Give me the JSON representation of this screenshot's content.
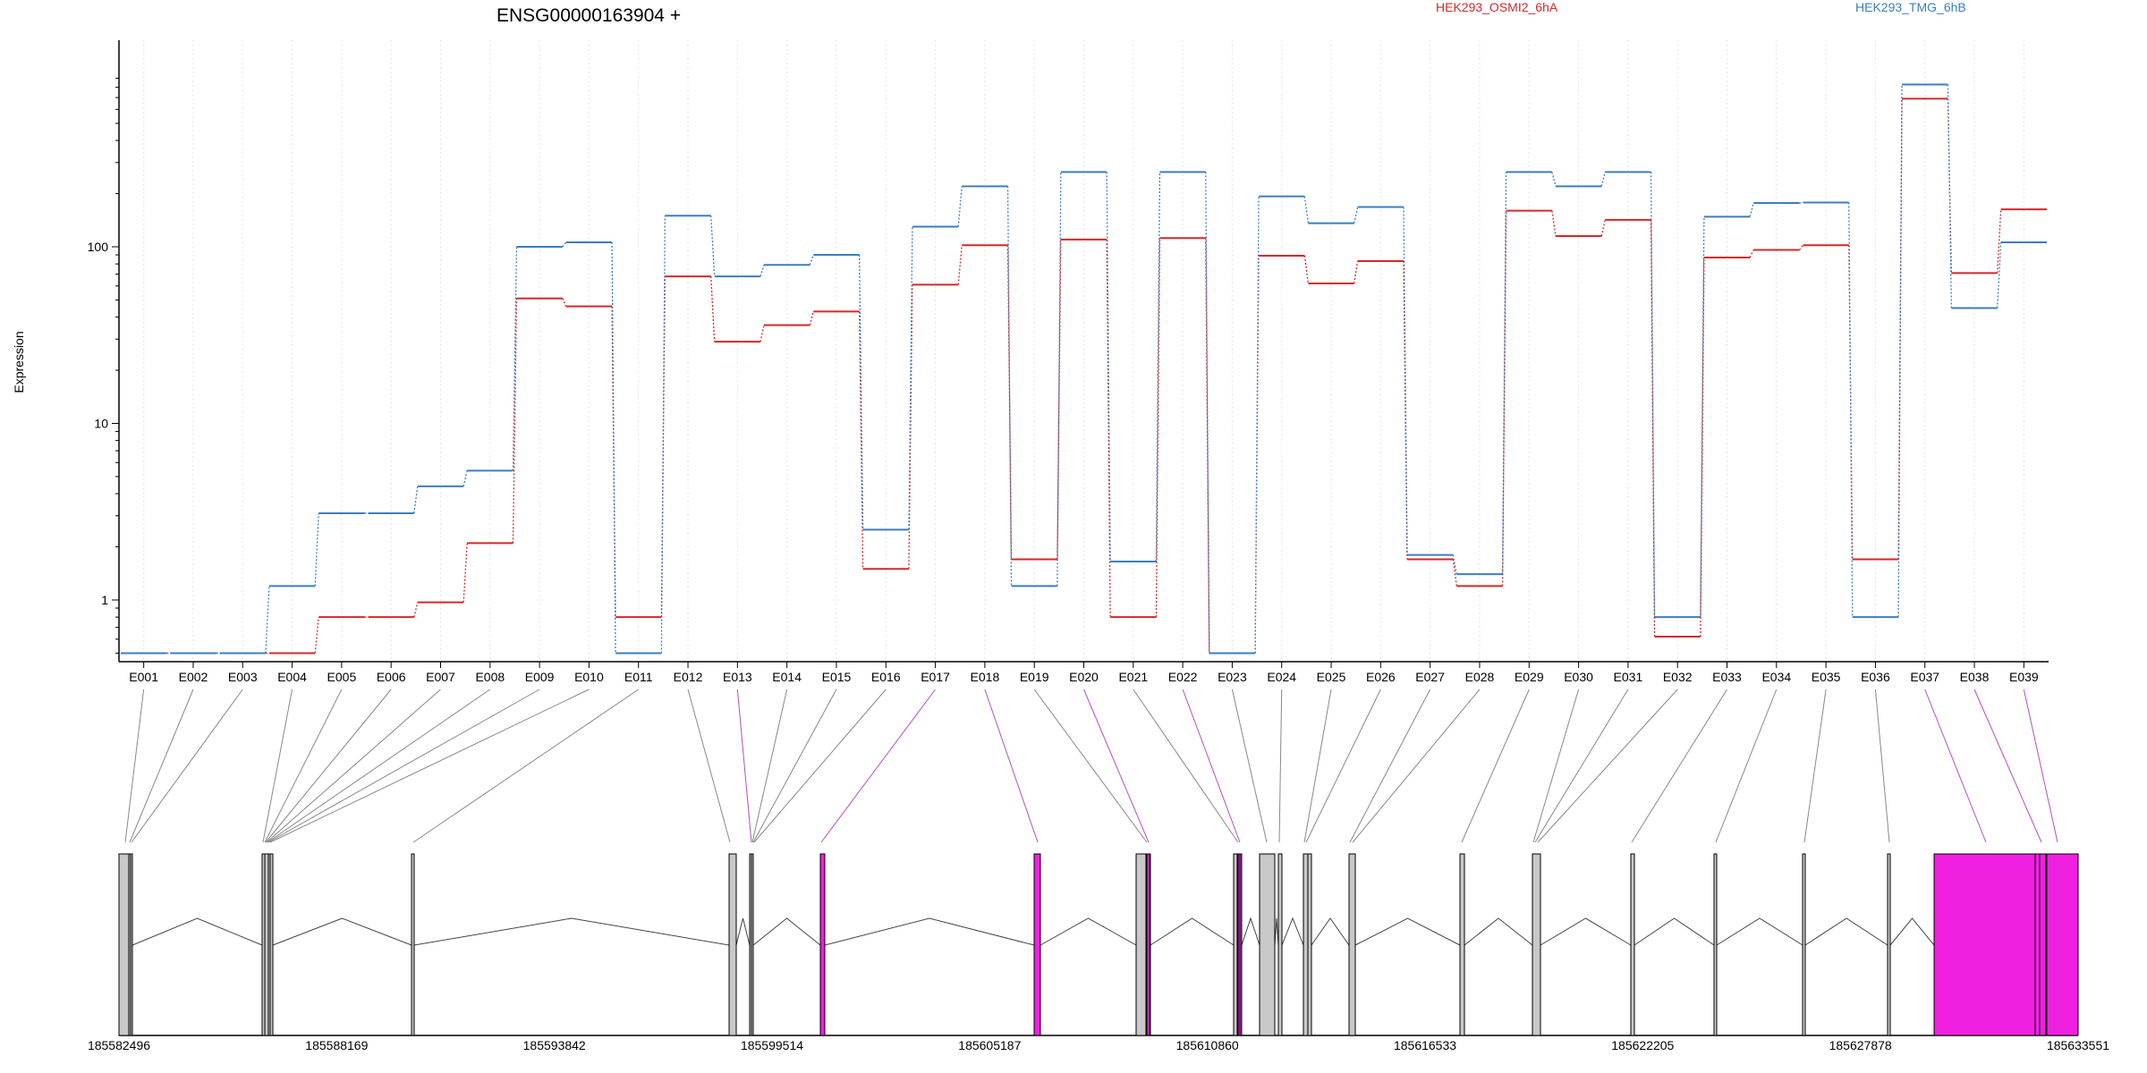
{
  "chart_data": {
    "type": "line",
    "title": "ENSG00000163904 +",
    "ylabel": "Expression",
    "yscale": "log",
    "ylim": [
      0.5,
      1000
    ],
    "ytick_labels": [
      "1",
      "10",
      "100"
    ],
    "ytick_values": [
      1,
      10,
      100
    ],
    "legend_placement": "top",
    "grid": "vertical dotted",
    "categories": [
      "E001",
      "E002",
      "E003",
      "E004",
      "E005",
      "E006",
      "E007",
      "E008",
      "E009",
      "E010",
      "E011",
      "E012",
      "E013",
      "E014",
      "E015",
      "E016",
      "E017",
      "E018",
      "E019",
      "E020",
      "E021",
      "E022",
      "E023",
      "E024",
      "E025",
      "E026",
      "E027",
      "E028",
      "E029",
      "E030",
      "E031",
      "E032",
      "E033",
      "E034",
      "E035",
      "E036",
      "E037",
      "E038",
      "E039"
    ],
    "series": [
      {
        "name": "HEK293_OSMI2_6hA",
        "color": "#d62728",
        "values": [
          0.5,
          0.5,
          0.5,
          0.5,
          0.8,
          0.8,
          0.97,
          2.1,
          51,
          46,
          0.8,
          68,
          29,
          36,
          43,
          1.5,
          61,
          102,
          1.7,
          110,
          0.8,
          112,
          0.5,
          89,
          62,
          83,
          1.7,
          1.2,
          160,
          115,
          142,
          0.62,
          87,
          96,
          102,
          1.7,
          690,
          71,
          163
        ]
      },
      {
        "name": "HEK293_TMG_6hB",
        "color": "#3a7ec1",
        "values": [
          0.5,
          0.5,
          0.5,
          1.2,
          3.1,
          3.1,
          4.4,
          5.4,
          100,
          106,
          0.5,
          150,
          68,
          79,
          90,
          2.5,
          130,
          220,
          1.2,
          265,
          1.65,
          265,
          0.5,
          193,
          136,
          168,
          1.8,
          1.4,
          265,
          220,
          265,
          0.8,
          148,
          177,
          178,
          0.8,
          830,
          45,
          106
        ]
      }
    ],
    "gene_track": {
      "x_tick_labels": [
        "185582496",
        "185588169",
        "185593842",
        "185599514",
        "185605187",
        "185610860",
        "185616533",
        "185622205",
        "185627878",
        "185633551"
      ],
      "x_tick_values": [
        185582496,
        185588169,
        185593842,
        185599514,
        185605187,
        185610860,
        185616533,
        185622205,
        185627878,
        185633551
      ],
      "exon_colors": {
        "normal": "#c8c8c8",
        "highlight": "#f020e0",
        "outline": "#000000"
      }
    }
  }
}
